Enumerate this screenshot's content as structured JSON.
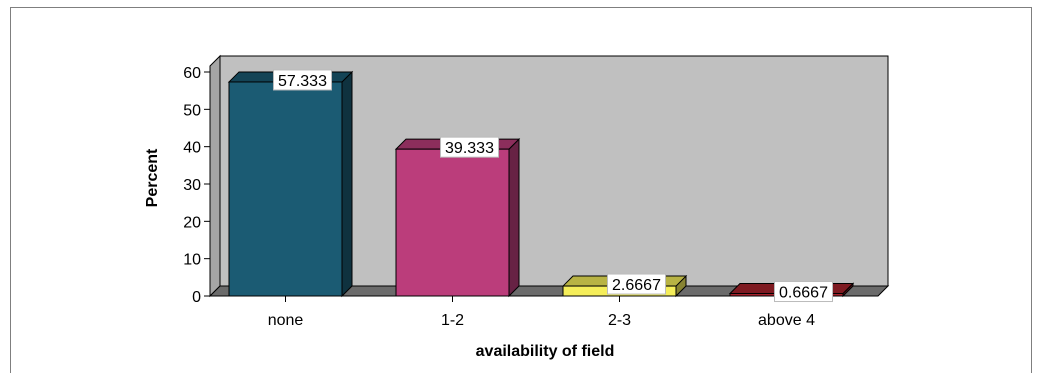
{
  "chart_data": {
    "type": "bar",
    "categories": [
      "none",
      "1-2",
      "2-3",
      "above 4"
    ],
    "values": [
      57.333,
      39.333,
      2.6667,
      0.6667
    ],
    "data_labels": [
      "57.333",
      "39.333",
      "2.6667",
      "0.6667"
    ],
    "xlabel": "availability of field",
    "ylabel": "Percent",
    "ylim": [
      0,
      60
    ],
    "yticks": [
      0,
      10,
      20,
      30,
      40,
      50,
      60
    ],
    "grid": false,
    "three_d": true,
    "colors": [
      "#1b5b73",
      "#bb3d7b",
      "#f5ee5a",
      "#a8222c"
    ],
    "background": "#c0c0c0"
  }
}
